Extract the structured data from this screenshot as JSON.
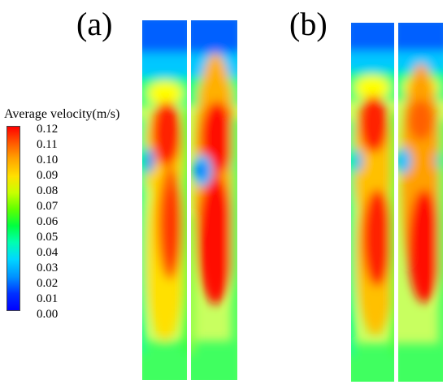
{
  "panels": [
    {
      "label": "(a)"
    },
    {
      "label": "(b)"
    }
  ],
  "legend": {
    "title": "Average velocity(m/s)",
    "ticks": [
      "0.12",
      "0.11",
      "0.10",
      "0.09",
      "0.08",
      "0.07",
      "0.06",
      "0.05",
      "0.04",
      "0.03",
      "0.02",
      "0.01",
      "0.00"
    ],
    "colors": [
      "#0000ff",
      "#0070ff",
      "#00d8ff",
      "#00ffb0",
      "#00ff40",
      "#60ff00",
      "#c8ff00",
      "#ffff00",
      "#ffc000",
      "#ff7000",
      "#ff0000"
    ]
  }
}
